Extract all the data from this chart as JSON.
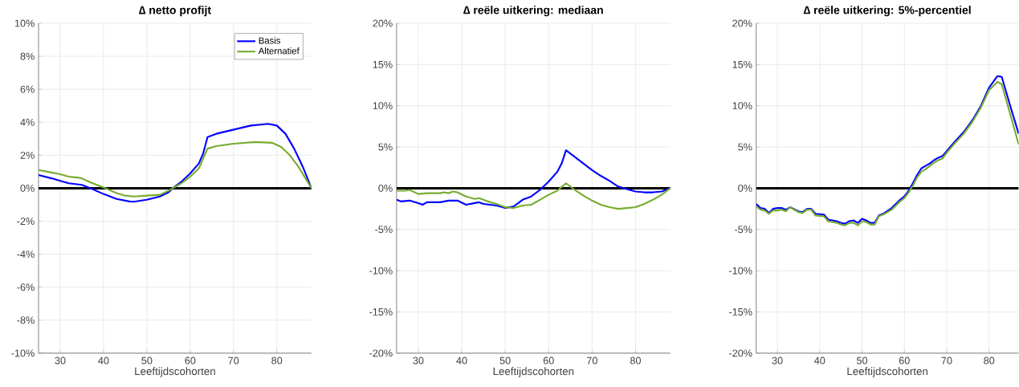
{
  "chart_data": [
    {
      "type": "line",
      "title": "∆ netto profijt",
      "xlabel": "Leeftijdscohorten",
      "xlim": [
        25,
        88
      ],
      "xticks": [
        30,
        40,
        50,
        60,
        70,
        80
      ],
      "ylim": [
        -10,
        10
      ],
      "yticks": [
        {
          "value": -10,
          "label": "-10%"
        },
        {
          "value": -8,
          "label": "-8%"
        },
        {
          "value": -6,
          "label": "-6%"
        },
        {
          "value": -4,
          "label": "-4%"
        },
        {
          "value": -2,
          "label": "-2%"
        },
        {
          "value": 0,
          "label": "0%"
        },
        {
          "value": 2,
          "label": "2%"
        },
        {
          "value": 4,
          "label": "4%"
        },
        {
          "value": 6,
          "label": "6%"
        },
        {
          "value": 8,
          "label": "8%"
        },
        {
          "value": 10,
          "label": "10%"
        }
      ],
      "grid": true,
      "legend": "top right",
      "ref_lines": [
        {
          "axis": "y",
          "value": 0,
          "color": "#000000"
        }
      ],
      "series": [
        {
          "name": "Basis",
          "color": "#0000ff",
          "x": [
            25,
            28,
            30,
            32,
            35,
            37,
            40,
            43,
            46,
            47,
            50,
            53,
            55,
            56,
            58,
            60,
            62,
            63,
            64,
            66,
            70,
            74,
            78,
            80,
            82,
            84,
            86,
            88
          ],
          "values": [
            0.8,
            0.6,
            0.45,
            0.3,
            0.2,
            0.0,
            -0.35,
            -0.65,
            -0.8,
            -0.82,
            -0.7,
            -0.5,
            -0.25,
            0.0,
            0.4,
            0.9,
            1.5,
            2.1,
            3.1,
            3.3,
            3.55,
            3.8,
            3.9,
            3.8,
            3.3,
            2.4,
            1.3,
            0.0
          ]
        },
        {
          "name": "Alternatief",
          "color": "#77ac30",
          "x": [
            25,
            28,
            30,
            32,
            34,
            35,
            37,
            40,
            43,
            45,
            47,
            50,
            53,
            55,
            56,
            58,
            60,
            62,
            63,
            64,
            66,
            70,
            75,
            79,
            81,
            83,
            85,
            88
          ],
          "values": [
            1.1,
            0.95,
            0.85,
            0.7,
            0.65,
            0.6,
            0.35,
            0.05,
            -0.3,
            -0.45,
            -0.5,
            -0.45,
            -0.4,
            -0.15,
            0.0,
            0.3,
            0.7,
            1.2,
            1.8,
            2.4,
            2.55,
            2.7,
            2.8,
            2.75,
            2.5,
            2.0,
            1.3,
            0.0
          ]
        }
      ]
    },
    {
      "type": "line",
      "title": "∆ reële uitkering: mediaan",
      "xlabel": "Leeftijdscohorten",
      "xlim": [
        25,
        88
      ],
      "xticks": [
        30,
        40,
        50,
        60,
        70,
        80
      ],
      "ylim": [
        -20,
        20
      ],
      "yticks": [
        {
          "value": -20,
          "label": "-20%"
        },
        {
          "value": -15,
          "label": "-15%"
        },
        {
          "value": -10,
          "label": "-10%"
        },
        {
          "value": -5,
          "label": "-5%"
        },
        {
          "value": 0,
          "label": "0%"
        },
        {
          "value": 5,
          "label": "5%"
        },
        {
          "value": 10,
          "label": "10%"
        },
        {
          "value": 15,
          "label": "15%"
        },
        {
          "value": 20,
          "label": "20%"
        }
      ],
      "grid": true,
      "ref_lines": [
        {
          "axis": "y",
          "value": 0,
          "color": "#000000"
        }
      ],
      "series": [
        {
          "color": "#0000ff",
          "x": [
            25,
            26,
            28,
            30,
            31,
            32,
            35,
            37,
            39,
            41,
            43,
            44,
            45,
            48,
            50,
            52,
            54,
            56,
            58,
            60,
            62,
            63,
            64,
            66,
            68,
            70,
            72,
            74,
            76,
            78,
            80,
            82,
            84,
            86,
            88
          ],
          "values": [
            -1.4,
            -1.6,
            -1.5,
            -1.8,
            -2.0,
            -1.7,
            -1.7,
            -1.5,
            -1.5,
            -2.0,
            -1.8,
            -1.7,
            -1.9,
            -2.1,
            -2.4,
            -2.2,
            -1.4,
            -1.0,
            -0.2,
            0.8,
            2.0,
            3.0,
            4.6,
            3.8,
            3.0,
            2.2,
            1.5,
            0.9,
            0.2,
            -0.1,
            -0.4,
            -0.5,
            -0.5,
            -0.4,
            0.0
          ]
        },
        {
          "color": "#77ac30",
          "x": [
            25,
            27,
            28,
            30,
            32,
            35,
            36,
            37,
            38,
            39,
            41,
            43,
            44,
            46,
            48,
            50,
            52,
            54,
            56,
            58,
            60,
            62,
            64,
            66,
            68,
            70,
            72,
            74,
            76,
            78,
            80,
            82,
            84,
            86,
            88
          ],
          "values": [
            -0.3,
            -0.3,
            -0.2,
            -0.7,
            -0.6,
            -0.6,
            -0.5,
            -0.6,
            -0.4,
            -0.5,
            -1.0,
            -1.3,
            -1.2,
            -1.6,
            -1.9,
            -2.3,
            -2.4,
            -2.1,
            -2.0,
            -1.4,
            -0.8,
            -0.3,
            0.6,
            -0.2,
            -0.9,
            -1.5,
            -2.0,
            -2.3,
            -2.5,
            -2.4,
            -2.3,
            -1.9,
            -1.4,
            -0.8,
            0.0
          ]
        }
      ]
    },
    {
      "type": "line",
      "title": "∆ reële uitkering: 5%-percentiel",
      "xlabel": "Leeftijdscohorten",
      "xlim": [
        25,
        87
      ],
      "xticks": [
        30,
        40,
        50,
        60,
        70,
        80
      ],
      "ylim": [
        -20,
        20
      ],
      "yticks": [
        {
          "value": -20,
          "label": "-20%"
        },
        {
          "value": -15,
          "label": "-15%"
        },
        {
          "value": -10,
          "label": "-10%"
        },
        {
          "value": -5,
          "label": "-5%"
        },
        {
          "value": 0,
          "label": "0%"
        },
        {
          "value": 5,
          "label": "5%"
        },
        {
          "value": 10,
          "label": "10%"
        },
        {
          "value": 15,
          "label": "15%"
        },
        {
          "value": 20,
          "label": "20%"
        }
      ],
      "grid": true,
      "ref_lines": [
        {
          "axis": "y",
          "value": 0,
          "color": "#000000"
        }
      ],
      "series": [
        {
          "color": "#0000ff",
          "x": [
            25,
            26,
            27,
            28,
            29,
            30,
            31,
            32,
            33,
            35,
            36,
            37,
            38,
            39,
            41,
            42,
            44,
            45,
            46,
            47,
            48,
            49,
            50,
            51,
            52,
            53,
            54,
            55,
            57,
            58,
            59,
            60,
            61,
            62,
            63,
            64,
            65,
            66,
            67,
            68,
            69,
            70,
            71,
            72,
            74,
            76,
            78,
            80,
            82,
            83,
            85,
            87
          ],
          "values": [
            -1.9,
            -2.4,
            -2.5,
            -3.0,
            -2.5,
            -2.4,
            -2.4,
            -2.6,
            -2.3,
            -2.8,
            -2.9,
            -2.5,
            -2.5,
            -3.1,
            -3.2,
            -3.8,
            -4.0,
            -4.2,
            -4.3,
            -4.0,
            -3.9,
            -4.2,
            -3.7,
            -3.9,
            -4.2,
            -4.2,
            -3.3,
            -3.1,
            -2.4,
            -1.9,
            -1.4,
            -1.0,
            -0.3,
            0.6,
            1.6,
            2.4,
            2.7,
            3.0,
            3.4,
            3.7,
            3.9,
            4.5,
            5.1,
            5.7,
            6.8,
            8.2,
            9.9,
            12.2,
            13.6,
            13.5,
            10.0,
            6.6
          ]
        },
        {
          "color": "#77ac30",
          "x": [
            25,
            26,
            27,
            28,
            29,
            30,
            31,
            32,
            33,
            35,
            36,
            37,
            38,
            39,
            41,
            42,
            44,
            45,
            46,
            47,
            48,
            49,
            50,
            51,
            52,
            53,
            54,
            55,
            57,
            58,
            59,
            60,
            61,
            62,
            63,
            64,
            65,
            66,
            67,
            68,
            69,
            70,
            71,
            72,
            74,
            76,
            78,
            80,
            82,
            83,
            85,
            87
          ],
          "values": [
            -2.2,
            -2.6,
            -2.7,
            -3.1,
            -2.7,
            -2.7,
            -2.6,
            -2.8,
            -2.3,
            -2.9,
            -3.0,
            -2.6,
            -2.6,
            -3.3,
            -3.4,
            -4.0,
            -4.2,
            -4.4,
            -4.5,
            -4.2,
            -4.2,
            -4.5,
            -4.0,
            -4.1,
            -4.4,
            -4.4,
            -3.4,
            -3.2,
            -2.6,
            -2.1,
            -1.6,
            -1.2,
            -0.5,
            0.3,
            1.3,
            2.0,
            2.3,
            2.7,
            3.1,
            3.4,
            3.6,
            4.3,
            4.9,
            5.5,
            6.6,
            8.0,
            9.7,
            11.9,
            12.9,
            12.6,
            9.0,
            5.3
          ]
        }
      ]
    }
  ]
}
